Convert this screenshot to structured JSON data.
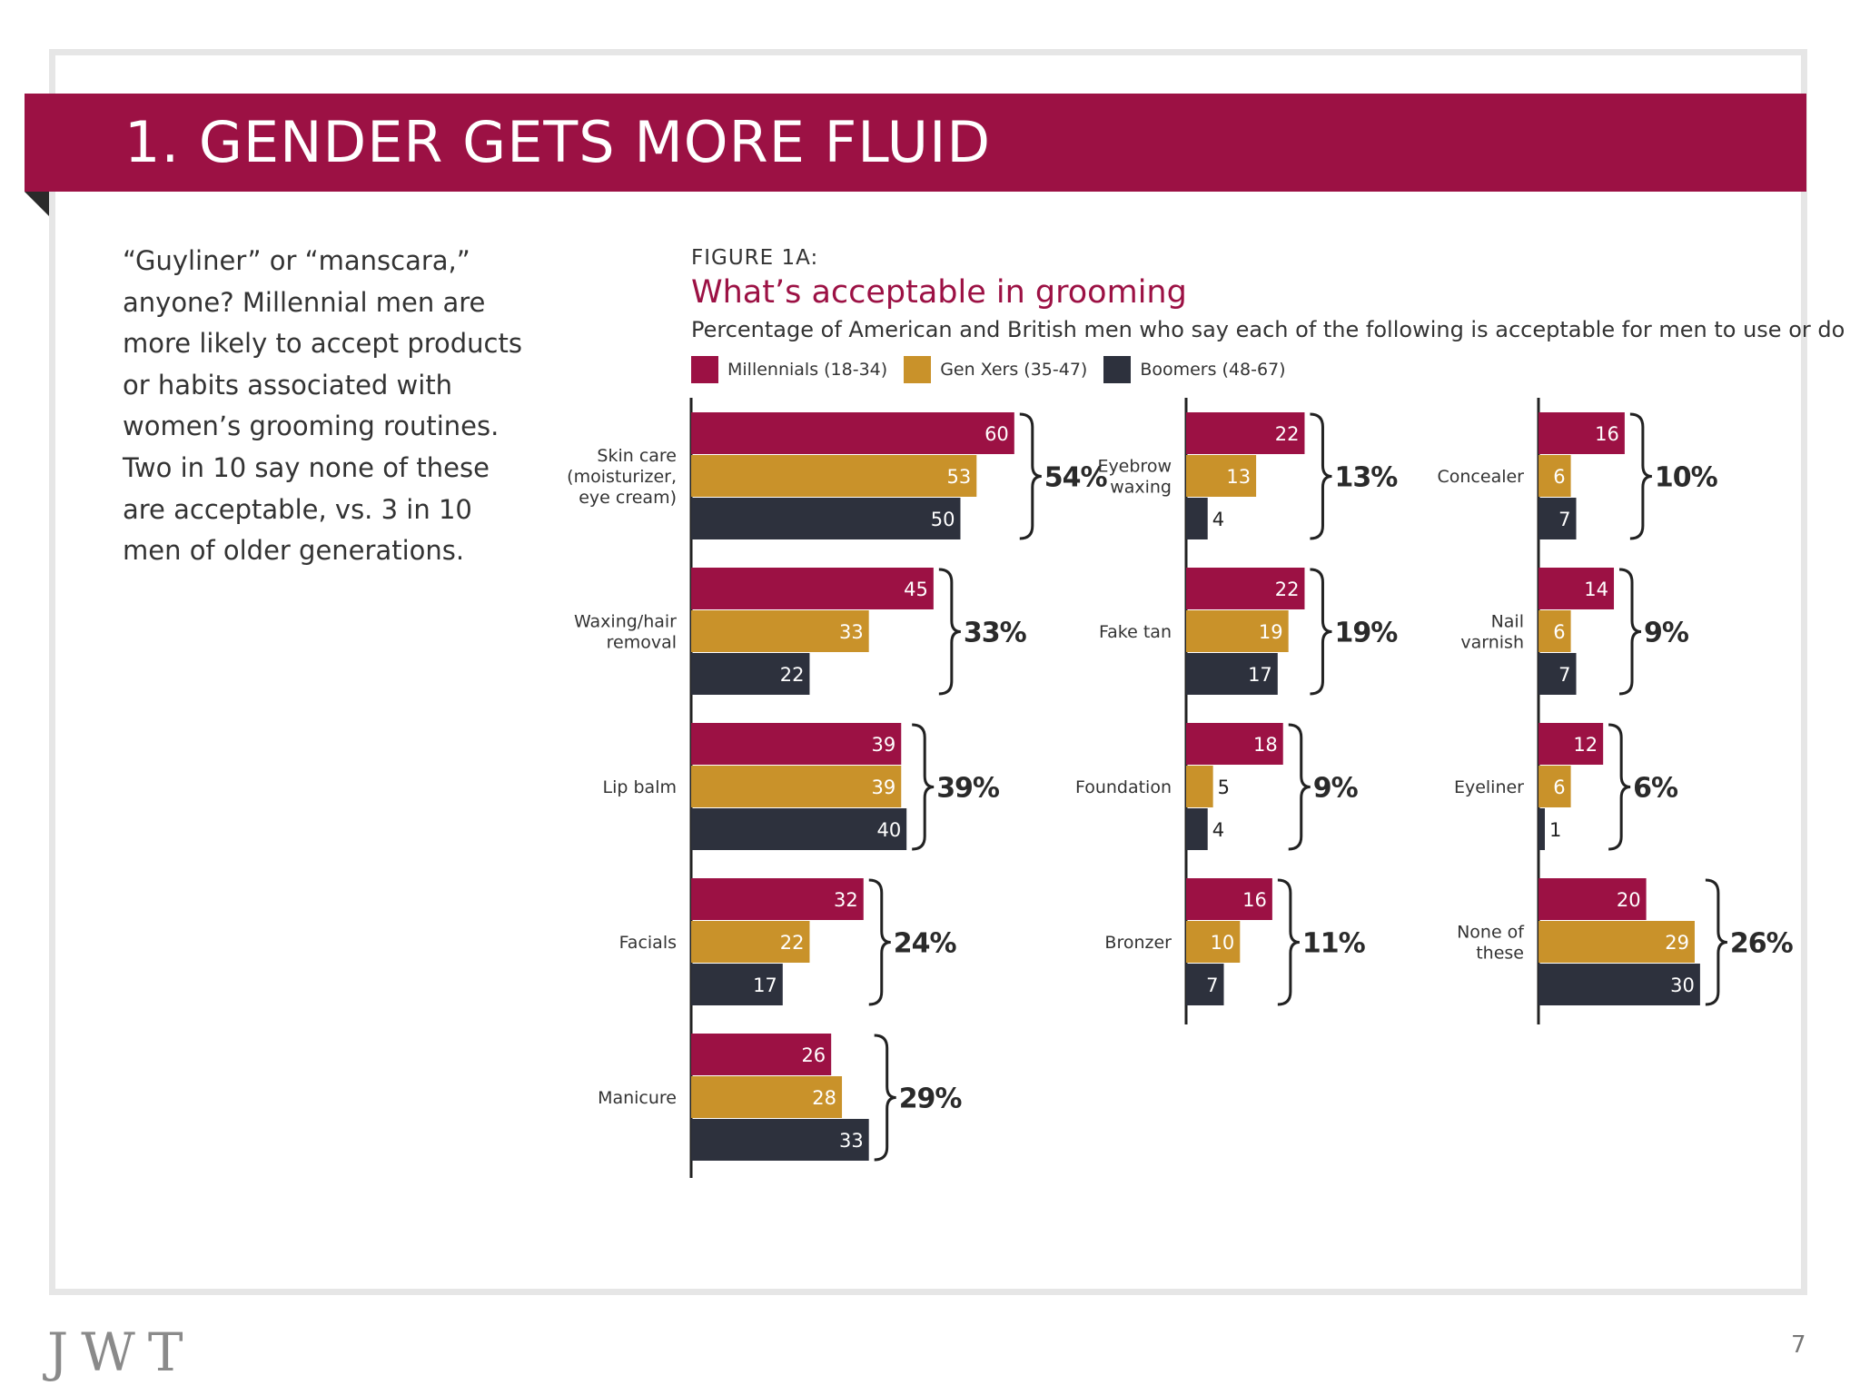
{
  "slide": {
    "title": "1. GENDER GETS MORE FLUID",
    "intro": "“Guyliner” or “manscara,” anyone? Millennial men are more likely to accept products or habits associated with women’s grooming routines. Two in 10 say none of these are acceptable, vs. 3 in 10 men of older generations.",
    "logo": "JWT",
    "page_number": "7"
  },
  "figure": {
    "label": "FIGURE 1A:",
    "title": "What’s acceptable in grooming",
    "subtitle": "Percentage of American and British men who say each of the following is acceptable for men to use or do"
  },
  "colors": {
    "brand": "#9c1144",
    "millennials": "#9c1144",
    "genx": "#c9922a",
    "boomers": "#2d313d"
  },
  "chart_data": {
    "type": "bar",
    "orientation": "horizontal",
    "series": [
      {
        "name": "Millennials (18-34)"
      },
      {
        "name": "Gen Xers (35-47)"
      },
      {
        "name": "Boomers (48-67)"
      }
    ],
    "columns": [
      {
        "items": [
          {
            "label": [
              "Skin care",
              "(moisturizer,",
              "eye cream)"
            ],
            "values": [
              60,
              53,
              50
            ],
            "total": "54%"
          },
          {
            "label": [
              "Waxing/hair",
              "removal"
            ],
            "values": [
              45,
              33,
              22
            ],
            "total": "33%"
          },
          {
            "label": [
              "Lip balm"
            ],
            "values": [
              39,
              39,
              40
            ],
            "total": "39%"
          },
          {
            "label": [
              "Facials"
            ],
            "values": [
              32,
              22,
              17
            ],
            "total": "24%"
          },
          {
            "label": [
              "Manicure"
            ],
            "values": [
              26,
              28,
              33
            ],
            "total": "29%"
          }
        ]
      },
      {
        "items": [
          {
            "label": [
              "Eyebrow",
              "waxing"
            ],
            "values": [
              22,
              13,
              4
            ],
            "total": "13%"
          },
          {
            "label": [
              "Fake tan"
            ],
            "values": [
              22,
              19,
              17
            ],
            "total": "19%"
          },
          {
            "label": [
              "Foundation"
            ],
            "values": [
              18,
              5,
              4
            ],
            "total": "9%"
          },
          {
            "label": [
              "Bronzer"
            ],
            "values": [
              16,
              10,
              7
            ],
            "total": "11%"
          }
        ]
      },
      {
        "items": [
          {
            "label": [
              "Concealer"
            ],
            "values": [
              16,
              6,
              7
            ],
            "total": "10%"
          },
          {
            "label": [
              "Nail",
              "varnish"
            ],
            "values": [
              14,
              6,
              7
            ],
            "total": "9%"
          },
          {
            "label": [
              "Eyeliner"
            ],
            "values": [
              12,
              6,
              1
            ],
            "total": "6%"
          },
          {
            "label": [
              "None of",
              "these"
            ],
            "values": [
              20,
              29,
              30
            ],
            "total": "26%"
          }
        ]
      }
    ]
  }
}
